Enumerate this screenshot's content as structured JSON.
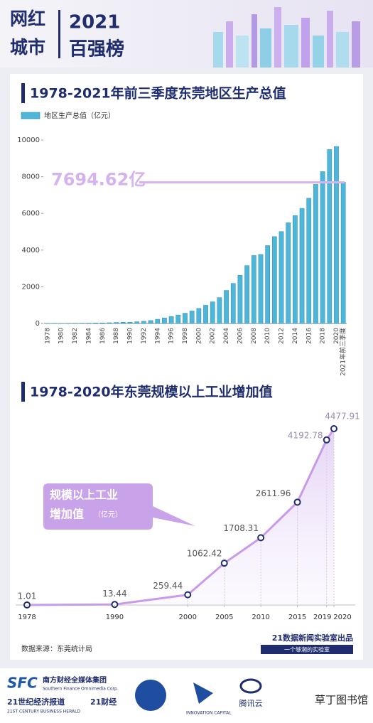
{
  "header": {
    "logo_top": "网红",
    "logo_bottom": "城市",
    "year": "2021",
    "title": "百强榜"
  },
  "chart_data": [
    {
      "type": "bar",
      "title": "1978-2021年前三季度东莞地区生产总值",
      "categories": [
        "1978",
        null,
        "1980",
        null,
        "1982",
        null,
        "1984",
        null,
        "1986",
        null,
        "1988",
        null,
        "1990",
        null,
        "1992",
        null,
        "1994",
        null,
        "1996",
        null,
        "1998",
        null,
        "2000",
        null,
        "2002",
        null,
        "2004",
        null,
        "2006",
        null,
        "2008",
        null,
        "2010",
        null,
        "2012",
        null,
        "2014",
        null,
        "2016",
        null,
        "2018",
        null,
        "2020",
        "2021年前三季度"
      ],
      "series": [
        {
          "name": "地区生产总值（亿元）",
          "color": "#4db6d9",
          "values": [
            6.11,
            7.5,
            9,
            10,
            12,
            14,
            18,
            26,
            30,
            40,
            55,
            65,
            70,
            95,
            120,
            160,
            230,
            300,
            380,
            460,
            560,
            680,
            820,
            990,
            1180,
            1410,
            1800,
            2183,
            2626,
            3151,
            3703,
            3763,
            4246,
            4735,
            5010,
            5490,
            5881,
            6275,
            6827,
            7582,
            8279,
            9482,
            9650,
            7694.62
          ]
        }
      ],
      "ylim": [
        0,
        10000
      ],
      "yticks": [
        0,
        2000,
        4000,
        6000,
        8000,
        10000
      ],
      "annotation": {
        "text": "7694.62亿",
        "color": "#d4b3ef"
      }
    },
    {
      "type": "line",
      "title": "1978-2020年东莞规模以上工业增加值",
      "x": [
        1978,
        1990,
        2000,
        2005,
        2010,
        2015,
        2019,
        2020
      ],
      "values": [
        1.01,
        13.44,
        259.44,
        1062.42,
        1708.31,
        2611.96,
        4192.78,
        4477.91
      ],
      "color": "#c99ae8",
      "xlim": [
        1978,
        2020
      ],
      "xticks": [
        1978,
        1990,
        2000,
        2005,
        2010,
        2015,
        2019,
        2020
      ],
      "callout": {
        "lines": [
          "规模以上工业",
          "增加值"
        ],
        "unit": "（亿元）"
      }
    }
  ],
  "source": "数据来源：东莞统计局",
  "credit": {
    "title": "21数据新闻实验室出品",
    "subtitle": "一个够潮的实验室"
  },
  "footer": {
    "sfc": "SFC",
    "group": "南方财经全媒体集团",
    "group_en": "Southern Finance Omnimedia Corp.",
    "herald": "21世纪经济报道",
    "herald_en": "21ST CENTURY BUSINESS HERALD",
    "app": "21财经",
    "innovation": "INNOVATION CAPITAL",
    "cloud": "腾讯云",
    "watermark": "草丁图书馆"
  }
}
